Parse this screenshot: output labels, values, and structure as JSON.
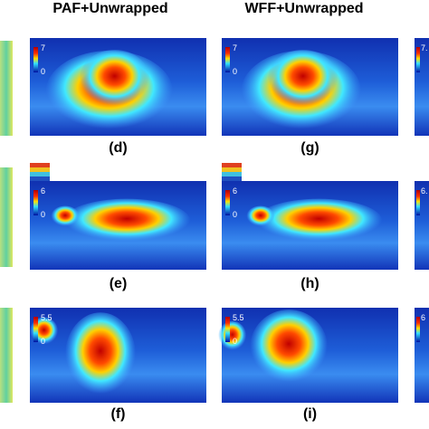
{
  "header": {
    "columns": [
      "PAF+Unwrapped",
      "WFF+Unwrapped"
    ]
  },
  "panels": [
    {
      "label": "(d)",
      "cbar_max": 7,
      "cbar_min": 0
    },
    {
      "label": "(g)",
      "cbar_max": 7,
      "cbar_min": 0
    },
    {
      "label": "(e)",
      "cbar_max": 6,
      "cbar_min": 0
    },
    {
      "label": "(h)",
      "cbar_max": 6,
      "cbar_min": 0
    },
    {
      "label": "(f)",
      "cbar_max": 5.5,
      "cbar_min": 0
    },
    {
      "label": "(i)",
      "cbar_max": 5.5,
      "cbar_min": 0
    }
  ],
  "cropped_right": [
    "7.",
    "6.",
    "6"
  ]
}
